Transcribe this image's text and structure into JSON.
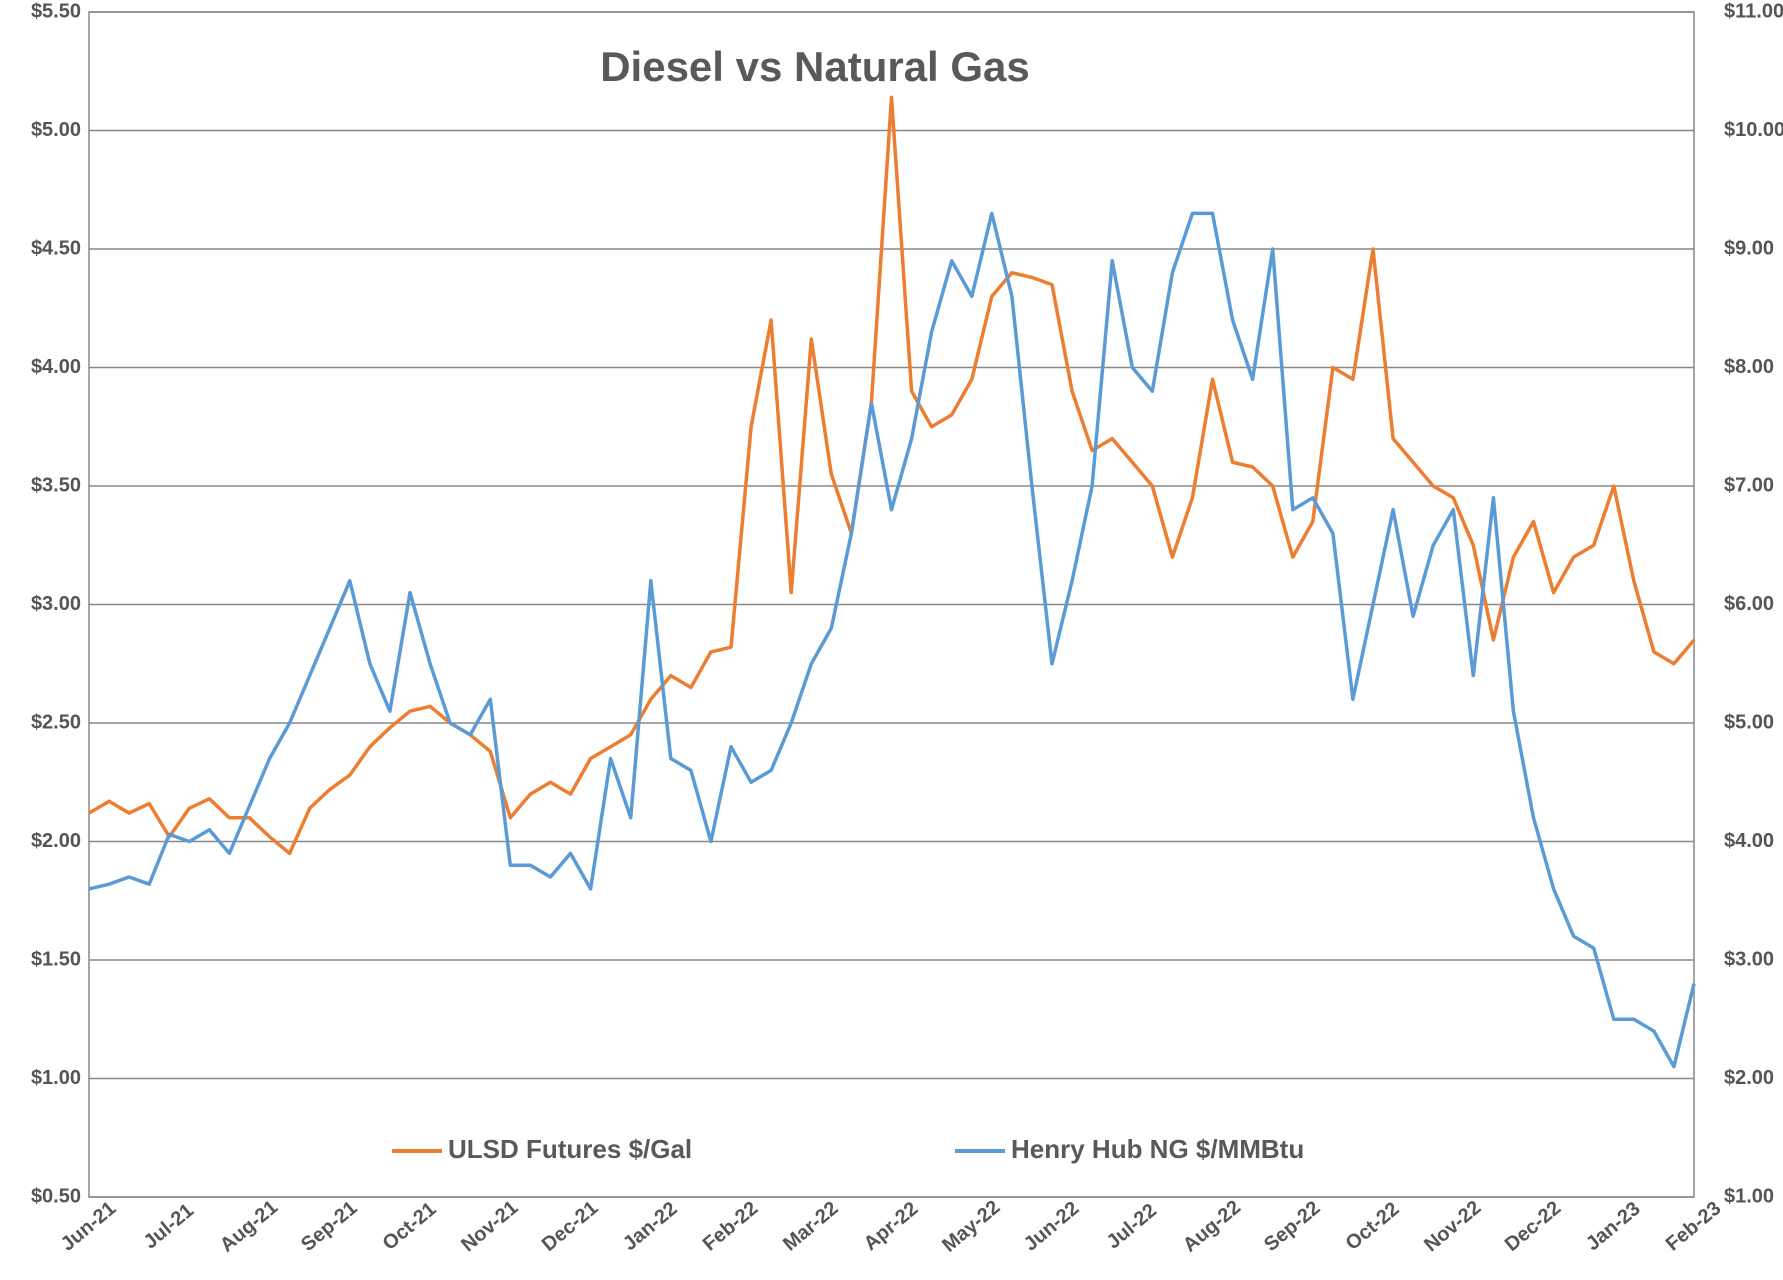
{
  "chart_data": {
    "type": "line",
    "title": "Diesel vs Natural Gas",
    "categories": [
      "Jun-21",
      null,
      null,
      null,
      "Jul-21",
      null,
      null,
      null,
      "Aug-21",
      null,
      null,
      null,
      "Sep-21",
      null,
      null,
      null,
      "Oct-21",
      null,
      null,
      null,
      "Nov-21",
      null,
      null,
      null,
      "Dec-21",
      null,
      null,
      null,
      "Jan-22",
      null,
      null,
      null,
      "Feb-22",
      null,
      null,
      null,
      "Mar-22",
      null,
      null,
      null,
      "Apr-22",
      null,
      null,
      null,
      "May-22",
      null,
      null,
      null,
      "Jun-22",
      null,
      null,
      null,
      "Jul-22",
      null,
      null,
      null,
      "Aug-22",
      null,
      null,
      null,
      "Sep-22",
      null,
      null,
      null,
      "Oct-22",
      null,
      null,
      null,
      "Nov-22",
      null,
      null,
      null,
      "Dec-22",
      null,
      null,
      null,
      "Jan-23",
      null,
      null,
      null,
      "Feb-23"
    ],
    "series": [
      {
        "name": "ULSD Futures $/Gal",
        "color": "#ed7d31",
        "axis": "y",
        "values": [
          2.12,
          2.17,
          2.12,
          2.16,
          2.02,
          2.14,
          2.18,
          2.1,
          2.1,
          2.02,
          1.95,
          2.14,
          2.22,
          2.28,
          2.4,
          2.48,
          2.55,
          2.57,
          2.5,
          2.45,
          2.38,
          2.1,
          2.2,
          2.25,
          2.2,
          2.35,
          2.4,
          2.45,
          2.6,
          2.7,
          2.65,
          2.8,
          2.82,
          3.75,
          4.2,
          3.05,
          4.12,
          3.55,
          3.3,
          3.85,
          5.14,
          3.9,
          3.75,
          3.8,
          3.95,
          4.3,
          4.4,
          4.38,
          4.35,
          3.9,
          3.65,
          3.7,
          3.6,
          3.5,
          3.2,
          3.45,
          3.95,
          3.6,
          3.58,
          3.5,
          3.2,
          3.35,
          4.0,
          3.95,
          4.5,
          3.7,
          3.6,
          3.5,
          3.45,
          3.25,
          2.85,
          3.2,
          3.35,
          3.05,
          3.2,
          3.25,
          3.5,
          3.1,
          2.8,
          2.75,
          2.85
        ]
      },
      {
        "name": "Henry Hub NG $/MMBtu",
        "color": "#5b9bd5",
        "axis": "y2",
        "values": [
          3.6,
          3.64,
          3.7,
          3.64,
          4.06,
          4.0,
          4.1,
          3.9,
          4.3,
          4.7,
          5.0,
          5.4,
          5.8,
          6.2,
          5.5,
          5.1,
          6.1,
          5.5,
          5.0,
          4.9,
          5.2,
          3.8,
          3.8,
          3.7,
          3.9,
          3.6,
          4.7,
          4.2,
          6.2,
          4.7,
          4.6,
          4.0,
          4.8,
          4.5,
          4.6,
          5.0,
          5.5,
          5.8,
          6.6,
          7.7,
          6.8,
          7.4,
          8.3,
          8.9,
          8.6,
          9.3,
          8.6,
          7.0,
          5.5,
          6.2,
          7.0,
          8.9,
          8.0,
          7.8,
          8.8,
          9.3,
          9.3,
          8.4,
          7.9,
          9.0,
          6.8,
          6.9,
          6.6,
          5.2,
          6.0,
          6.8,
          5.9,
          6.5,
          6.8,
          5.4,
          6.9,
          5.1,
          4.2,
          3.6,
          3.2,
          3.1,
          2.5,
          2.5,
          2.4,
          2.1,
          2.8
        ]
      }
    ],
    "ylim": [
      0.5,
      5.5
    ],
    "yticks": [
      {
        "value": 0.5,
        "label": "$0.50"
      },
      {
        "value": 1,
        "label": "$1.00"
      },
      {
        "value": 1.5,
        "label": "$1.50"
      },
      {
        "value": 2,
        "label": "$2.00"
      },
      {
        "value": 2.5,
        "label": "$2.50"
      },
      {
        "value": 3,
        "label": "$3.00"
      },
      {
        "value": 3.5,
        "label": "$3.50"
      },
      {
        "value": 4,
        "label": "$4.00"
      },
      {
        "value": 4.5,
        "label": "$4.50"
      },
      {
        "value": 5,
        "label": "$5.00"
      },
      {
        "value": 5.5,
        "label": "$5.50"
      }
    ],
    "y2lim": [
      1,
      11
    ],
    "y2ticks": [
      {
        "value": 1,
        "label": "$1.00"
      },
      {
        "value": 2,
        "label": "$2.00"
      },
      {
        "value": 3,
        "label": "$3.00"
      },
      {
        "value": 4,
        "label": "$4.00"
      },
      {
        "value": 5,
        "label": "$5.00"
      },
      {
        "value": 6,
        "label": "$6.00"
      },
      {
        "value": 7,
        "label": "$7.00"
      },
      {
        "value": 8,
        "label": "$8.00"
      },
      {
        "value": 9,
        "label": "$9.00"
      },
      {
        "value": 10,
        "label": "$10.00"
      },
      {
        "value": 11,
        "label": "$11.00"
      }
    ],
    "grid": true,
    "legend": "bottom"
  }
}
